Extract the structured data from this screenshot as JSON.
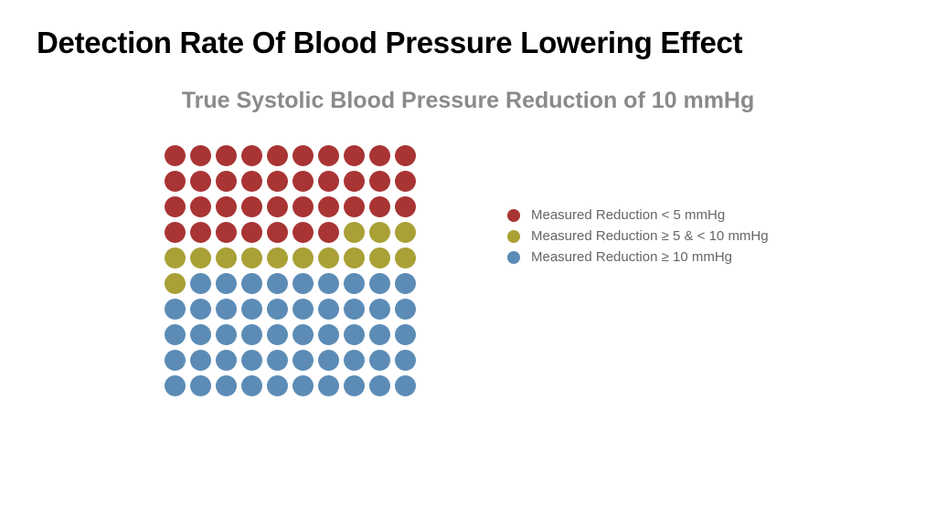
{
  "title": {
    "text": "Detection Rate Of Blood Pressure Lowering Effect",
    "fontsize": 33,
    "color": "#000000"
  },
  "subtitle": {
    "text": "True Systolic Blood Pressure Reduction of 10 mmHg",
    "fontsize": 25,
    "color": "#8a8a8a"
  },
  "chart": {
    "type": "dot-matrix",
    "rows": 10,
    "cols": 10,
    "dot_diameter": 23,
    "dot_gap": 5,
    "categories": [
      {
        "key": "low",
        "label": "Measured Reduction < 5 mmHg",
        "color": "#a93434"
      },
      {
        "key": "mid",
        "label": " Measured Reduction ≥ 5 & < 10 mmHg",
        "color": "#a9a036"
      },
      {
        "key": "high",
        "label": "Measured Reduction ≥ 10 mmHg",
        "color": "#5c8cb6"
      }
    ],
    "grid": [
      [
        "low",
        "low",
        "low",
        "low",
        "low",
        "low",
        "low",
        "low",
        "low",
        "low"
      ],
      [
        "low",
        "low",
        "low",
        "low",
        "low",
        "low",
        "low",
        "low",
        "low",
        "low"
      ],
      [
        "low",
        "low",
        "low",
        "low",
        "low",
        "low",
        "low",
        "low",
        "low",
        "low"
      ],
      [
        "low",
        "low",
        "low",
        "low",
        "low",
        "low",
        "low",
        "mid",
        "mid",
        "mid"
      ],
      [
        "mid",
        "mid",
        "mid",
        "mid",
        "mid",
        "mid",
        "mid",
        "mid",
        "mid",
        "mid"
      ],
      [
        "mid",
        "high",
        "high",
        "high",
        "high",
        "high",
        "high",
        "high",
        "high",
        "high"
      ],
      [
        "high",
        "high",
        "high",
        "high",
        "high",
        "high",
        "high",
        "high",
        "high",
        "high"
      ],
      [
        "high",
        "high",
        "high",
        "high",
        "high",
        "high",
        "high",
        "high",
        "high",
        "high"
      ],
      [
        "high",
        "high",
        "high",
        "high",
        "high",
        "high",
        "high",
        "high",
        "high",
        "high"
      ],
      [
        "high",
        "high",
        "high",
        "high",
        "high",
        "high",
        "high",
        "high",
        "high",
        "high"
      ]
    ]
  },
  "legend": {
    "dot_diameter": 14,
    "gap_after_dot": 12,
    "fontsize": 15,
    "text_color": "#666666"
  },
  "background_color": "#ffffff"
}
